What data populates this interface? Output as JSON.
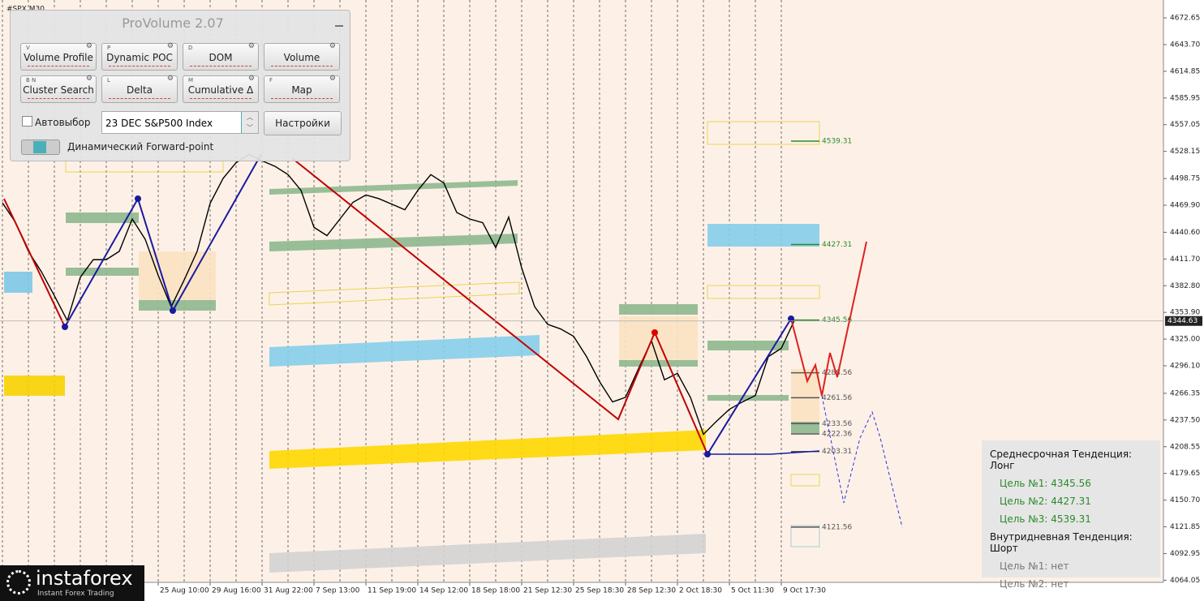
{
  "chart_data": {
    "type": "line",
    "title": "#SPX,M30",
    "categories": [
      null,
      null,
      null,
      null,
      null,
      null,
      null,
      null,
      null,
      null,
      null,
      null,
      "25 Aug 10:00",
      null,
      null,
      null,
      "29 Aug 16:00",
      null,
      null,
      null,
      "31 Aug 22:00",
      null,
      null,
      null,
      "7 Sep 13:00",
      null,
      null,
      null,
      "11 Sep 19:00",
      null,
      null,
      null,
      "14 Sep 12:00",
      null,
      null,
      null,
      "18 Sep 18:00",
      null,
      null,
      null,
      "21 Sep 12:30",
      null,
      null,
      null,
      "25 Sep 18:30",
      null,
      null,
      null,
      "28 Sep 12:30",
      null,
      null,
      null,
      "2 Oct 18:30",
      null,
      null,
      null,
      "5 Oct 11:30",
      null,
      null,
      null,
      "9 Oct 17:30",
      null
    ],
    "values": [
      4472.5,
      4451.5,
      4420,
      4398,
      4372,
      4345,
      4392,
      4411,
      4411,
      4420,
      4455,
      4433,
      4394,
      4360,
      4389,
      4420,
      4472,
      4499,
      4516,
      4525,
      4518,
      4512,
      4503,
      4486,
      4446,
      4437,
      4455,
      4473,
      4481,
      4477,
      4471,
      4465,
      4486,
      4503,
      4494,
      4462,
      4455,
      4451,
      4424,
      4457,
      4402,
      4360,
      4341,
      4336,
      4328,
      4306,
      4279,
      4257,
      4262,
      4293,
      4323,
      4281,
      4288,
      4262,
      4222,
      4236,
      4249,
      4257,
      4264,
      4306,
      4315,
      4345
    ],
    "color": "#000000",
    "ylim": [
      4060,
      4692
    ],
    "yticks": [
      4672.65,
      {
        "value": 4643.7,
        "label": "4643.70"
      },
      4614.85,
      4585.95,
      4557.05,
      4528.15,
      4498.75,
      {
        "value": 4469.9,
        "label": "4469.90"
      },
      {
        "value": 4440.6,
        "label": "4440.60"
      },
      {
        "value": 4411.7,
        "label": "4411.70"
      },
      {
        "value": 4382.8,
        "label": "4382.80"
      },
      {
        "value": 4353.9,
        "label": "4353.90"
      },
      {
        "value": 4325,
        "label": "4325.00"
      },
      {
        "value": 4296.1,
        "label": "4296.10"
      },
      4266.35,
      {
        "value": 4237.5,
        "label": "4237.50"
      },
      4208.55,
      4179.65,
      {
        "value": 4150.7,
        "label": "4150.70"
      },
      4121.85,
      4092.95,
      4064.05
    ],
    "levels": [
      4539.31,
      4427.31,
      4345.56,
      4288.56,
      4261.56,
      4233.56,
      4222.36,
      4203.31,
      4121.56
    ],
    "last_price": 4344.63,
    "grid": false
  },
  "panel": {
    "title": "ProVolume 2.07",
    "buttons": [
      {
        "label": "Volume Profile",
        "key": "V"
      },
      {
        "label": "Dynamic POC",
        "key": "P"
      },
      {
        "label": "DOM",
        "key": "D"
      },
      {
        "label": "Volume"
      },
      {
        "label": "Cluster Search",
        "key": "B N"
      },
      {
        "label": "Delta",
        "key": "L"
      },
      {
        "label": "Cumulative Δ",
        "key": "M"
      },
      {
        "label": "Map",
        "key": "F"
      }
    ],
    "auto_select": "Автовыбор",
    "instrument": "23 DEC S&P500 Index",
    "settings": "Настройки",
    "forward_point": "Динамический Forward-point"
  },
  "info_box": {
    "groups": [
      {
        "heading": "Среднесрочная Тенденция: Лонг",
        "targets": [
          "Цель №1: 4345.56",
          "Цель №2: 4427.31",
          "Цель №3: 4539.31"
        ]
      },
      {
        "heading": "Внутридневная Тенденция: Шорт",
        "targets": [
          "Цель №1: нет",
          "Цель №2: нет"
        ]
      }
    ]
  },
  "logo": {
    "name": "instaforex",
    "tagline": "Instant Forex Trading"
  }
}
